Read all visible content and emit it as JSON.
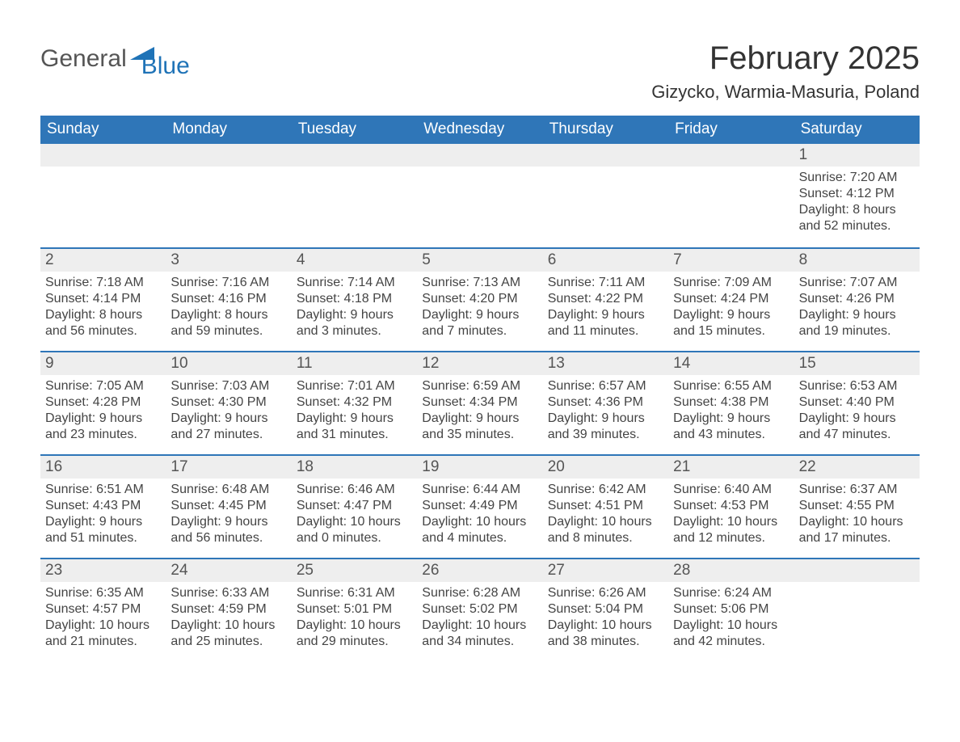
{
  "logo": {
    "word1": "General",
    "word2": "Blue"
  },
  "title": "February 2025",
  "location": "Gizycko, Warmia-Masuria, Poland",
  "colors": {
    "header_blue": "#2f76b8",
    "row_gray": "#eeeeee",
    "text_dark": "#333333",
    "logo_gray": "#555555",
    "logo_blue": "#1f73b7",
    "page_bg": "#ffffff"
  },
  "weekdays": [
    "Sunday",
    "Monday",
    "Tuesday",
    "Wednesday",
    "Thursday",
    "Friday",
    "Saturday"
  ],
  "weeks": [
    [
      null,
      null,
      null,
      null,
      null,
      null,
      {
        "n": "1",
        "sunrise": "Sunrise: 7:20 AM",
        "sunset": "Sunset: 4:12 PM",
        "d1": "Daylight: 8 hours",
        "d2": "and 52 minutes."
      }
    ],
    [
      {
        "n": "2",
        "sunrise": "Sunrise: 7:18 AM",
        "sunset": "Sunset: 4:14 PM",
        "d1": "Daylight: 8 hours",
        "d2": "and 56 minutes."
      },
      {
        "n": "3",
        "sunrise": "Sunrise: 7:16 AM",
        "sunset": "Sunset: 4:16 PM",
        "d1": "Daylight: 8 hours",
        "d2": "and 59 minutes."
      },
      {
        "n": "4",
        "sunrise": "Sunrise: 7:14 AM",
        "sunset": "Sunset: 4:18 PM",
        "d1": "Daylight: 9 hours",
        "d2": "and 3 minutes."
      },
      {
        "n": "5",
        "sunrise": "Sunrise: 7:13 AM",
        "sunset": "Sunset: 4:20 PM",
        "d1": "Daylight: 9 hours",
        "d2": "and 7 minutes."
      },
      {
        "n": "6",
        "sunrise": "Sunrise: 7:11 AM",
        "sunset": "Sunset: 4:22 PM",
        "d1": "Daylight: 9 hours",
        "d2": "and 11 minutes."
      },
      {
        "n": "7",
        "sunrise": "Sunrise: 7:09 AM",
        "sunset": "Sunset: 4:24 PM",
        "d1": "Daylight: 9 hours",
        "d2": "and 15 minutes."
      },
      {
        "n": "8",
        "sunrise": "Sunrise: 7:07 AM",
        "sunset": "Sunset: 4:26 PM",
        "d1": "Daylight: 9 hours",
        "d2": "and 19 minutes."
      }
    ],
    [
      {
        "n": "9",
        "sunrise": "Sunrise: 7:05 AM",
        "sunset": "Sunset: 4:28 PM",
        "d1": "Daylight: 9 hours",
        "d2": "and 23 minutes."
      },
      {
        "n": "10",
        "sunrise": "Sunrise: 7:03 AM",
        "sunset": "Sunset: 4:30 PM",
        "d1": "Daylight: 9 hours",
        "d2": "and 27 minutes."
      },
      {
        "n": "11",
        "sunrise": "Sunrise: 7:01 AM",
        "sunset": "Sunset: 4:32 PM",
        "d1": "Daylight: 9 hours",
        "d2": "and 31 minutes."
      },
      {
        "n": "12",
        "sunrise": "Sunrise: 6:59 AM",
        "sunset": "Sunset: 4:34 PM",
        "d1": "Daylight: 9 hours",
        "d2": "and 35 minutes."
      },
      {
        "n": "13",
        "sunrise": "Sunrise: 6:57 AM",
        "sunset": "Sunset: 4:36 PM",
        "d1": "Daylight: 9 hours",
        "d2": "and 39 minutes."
      },
      {
        "n": "14",
        "sunrise": "Sunrise: 6:55 AM",
        "sunset": "Sunset: 4:38 PM",
        "d1": "Daylight: 9 hours",
        "d2": "and 43 minutes."
      },
      {
        "n": "15",
        "sunrise": "Sunrise: 6:53 AM",
        "sunset": "Sunset: 4:40 PM",
        "d1": "Daylight: 9 hours",
        "d2": "and 47 minutes."
      }
    ],
    [
      {
        "n": "16",
        "sunrise": "Sunrise: 6:51 AM",
        "sunset": "Sunset: 4:43 PM",
        "d1": "Daylight: 9 hours",
        "d2": "and 51 minutes."
      },
      {
        "n": "17",
        "sunrise": "Sunrise: 6:48 AM",
        "sunset": "Sunset: 4:45 PM",
        "d1": "Daylight: 9 hours",
        "d2": "and 56 minutes."
      },
      {
        "n": "18",
        "sunrise": "Sunrise: 6:46 AM",
        "sunset": "Sunset: 4:47 PM",
        "d1": "Daylight: 10 hours",
        "d2": "and 0 minutes."
      },
      {
        "n": "19",
        "sunrise": "Sunrise: 6:44 AM",
        "sunset": "Sunset: 4:49 PM",
        "d1": "Daylight: 10 hours",
        "d2": "and 4 minutes."
      },
      {
        "n": "20",
        "sunrise": "Sunrise: 6:42 AM",
        "sunset": "Sunset: 4:51 PM",
        "d1": "Daylight: 10 hours",
        "d2": "and 8 minutes."
      },
      {
        "n": "21",
        "sunrise": "Sunrise: 6:40 AM",
        "sunset": "Sunset: 4:53 PM",
        "d1": "Daylight: 10 hours",
        "d2": "and 12 minutes."
      },
      {
        "n": "22",
        "sunrise": "Sunrise: 6:37 AM",
        "sunset": "Sunset: 4:55 PM",
        "d1": "Daylight: 10 hours",
        "d2": "and 17 minutes."
      }
    ],
    [
      {
        "n": "23",
        "sunrise": "Sunrise: 6:35 AM",
        "sunset": "Sunset: 4:57 PM",
        "d1": "Daylight: 10 hours",
        "d2": "and 21 minutes."
      },
      {
        "n": "24",
        "sunrise": "Sunrise: 6:33 AM",
        "sunset": "Sunset: 4:59 PM",
        "d1": "Daylight: 10 hours",
        "d2": "and 25 minutes."
      },
      {
        "n": "25",
        "sunrise": "Sunrise: 6:31 AM",
        "sunset": "Sunset: 5:01 PM",
        "d1": "Daylight: 10 hours",
        "d2": "and 29 minutes."
      },
      {
        "n": "26",
        "sunrise": "Sunrise: 6:28 AM",
        "sunset": "Sunset: 5:02 PM",
        "d1": "Daylight: 10 hours",
        "d2": "and 34 minutes."
      },
      {
        "n": "27",
        "sunrise": "Sunrise: 6:26 AM",
        "sunset": "Sunset: 5:04 PM",
        "d1": "Daylight: 10 hours",
        "d2": "and 38 minutes."
      },
      {
        "n": "28",
        "sunrise": "Sunrise: 6:24 AM",
        "sunset": "Sunset: 5:06 PM",
        "d1": "Daylight: 10 hours",
        "d2": "and 42 minutes."
      },
      null
    ]
  ]
}
